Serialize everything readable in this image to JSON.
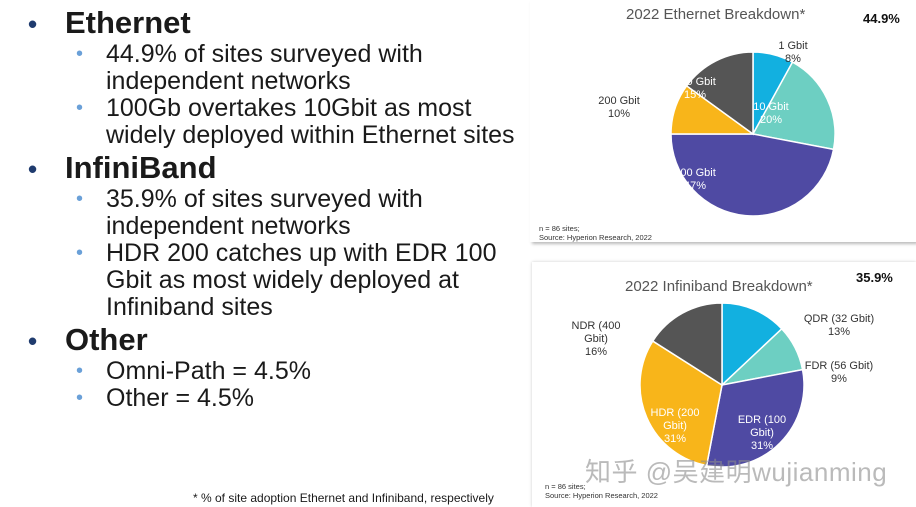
{
  "bullets": [
    {
      "heading": "Ethernet",
      "subs": [
        "44.9% of sites surveyed with independent networks",
        "100Gb overtakes 10Gbit as most widely deployed within Ethernet sites"
      ]
    },
    {
      "heading": "InfiniBand",
      "subs": [
        "35.9% of sites surveyed with independent networks",
        "HDR 200 catches up with EDR 100 Gbit as most widely deployed at Infiniband sites"
      ]
    },
    {
      "heading": "Other",
      "subs": [
        "Omni-Path = 4.5%",
        "Other = 4.5%"
      ]
    }
  ],
  "footnote": "* % of site adoption Ethernet and Infiniband, respectively",
  "watermark": "知乎 @吴建明wujianming",
  "chart_data": [
    {
      "type": "pie",
      "title": "2022 Ethernet Breakdown*",
      "corner_value": "44.9%",
      "source_lines": [
        "n = 86 sites;",
        "Source: Hyperion Research, 2022"
      ],
      "slices": [
        {
          "name": "1 Gbit",
          "value": 8,
          "label": "8%",
          "color": "#12b0e0"
        },
        {
          "name": "10 Gbit",
          "value": 20,
          "label": "20%",
          "color": "#6dcfc2"
        },
        {
          "name": "100 Gbit",
          "value": 47,
          "label": "47%",
          "color": "#4f4aa3"
        },
        {
          "name": "200 Gbit",
          "value": 10,
          "label": "10%",
          "color": "#f8b51a"
        },
        {
          "name": "400 Gbit",
          "value": 15,
          "label": "15%",
          "color": "#555555"
        }
      ]
    },
    {
      "type": "pie",
      "title": "2022 Infiniband Breakdown*",
      "corner_value": "35.9%",
      "source_lines": [
        "n = 86 sites;",
        "Source: Hyperion Research, 2022"
      ],
      "slices": [
        {
          "name": "QDR (32 Gbit)",
          "value": 13,
          "label": "13%",
          "color": "#12b0e0"
        },
        {
          "name": "FDR (56 Gbit)",
          "value": 9,
          "label": "9%",
          "color": "#6dcfc2"
        },
        {
          "name": "EDR (100 Gbit)",
          "value": 31,
          "label": "31%",
          "color": "#4f4aa3"
        },
        {
          "name": "HDR (200 Gbit)",
          "value": 31,
          "label": "31%",
          "color": "#f8b51a"
        },
        {
          "name": "NDR (400 Gbit)",
          "value": 16,
          "label": "16%",
          "color": "#555555"
        }
      ]
    }
  ]
}
